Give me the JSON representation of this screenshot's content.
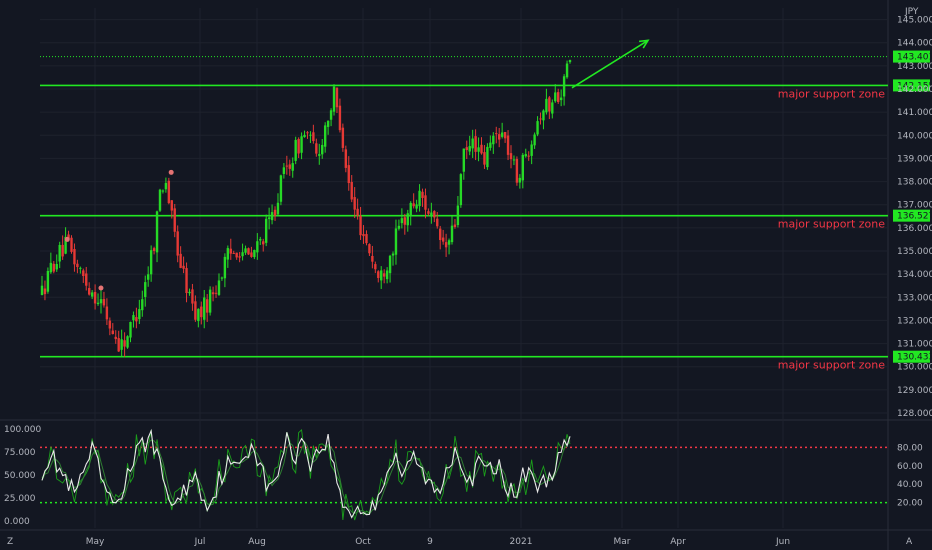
{
  "chart_data": [
    {
      "type": "candlestick",
      "currency": "JPY",
      "y_ticks": [
        "145.000",
        "144.000",
        "143.000",
        "142.000",
        "141.000",
        "140.000",
        "139.000",
        "138.000",
        "137.000",
        "136.000",
        "135.000",
        "134.000",
        "133.000",
        "132.000",
        "131.000",
        "130.000",
        "129.000",
        "128.000"
      ],
      "ylim": [
        128,
        145.5
      ],
      "x_ticks": [
        "May",
        "Jul",
        "Aug",
        "Oct",
        "9",
        "2021",
        "Mar",
        "Apr",
        "Jun"
      ],
      "current_price": "143.401",
      "horizontal_levels": [
        {
          "value": 142.155,
          "label": "142.155",
          "annotation": "major support zone"
        },
        {
          "value": 136.527,
          "label": "136.527",
          "annotation": "major support zone"
        },
        {
          "value": 130.433,
          "label": "130.433",
          "annotation": "major support zone"
        }
      ],
      "candle_count": 180,
      "price_path": [
        [
          0,
          133.2
        ],
        [
          4,
          134.5
        ],
        [
          9,
          135.3
        ],
        [
          13,
          134.2
        ],
        [
          17,
          133.4
        ],
        [
          21,
          132.8
        ],
        [
          25,
          131.5
        ],
        [
          28,
          130.9
        ],
        [
          31,
          131.5
        ],
        [
          36,
          133.2
        ],
        [
          40,
          135.5
        ],
        [
          42,
          137.6
        ],
        [
          44,
          138.2
        ],
        [
          46,
          136.5
        ],
        [
          49,
          134.6
        ],
        [
          53,
          132.8
        ],
        [
          55,
          132.2
        ],
        [
          58,
          132.6
        ],
        [
          62,
          133.5
        ],
        [
          66,
          134.7
        ],
        [
          70,
          135.2
        ],
        [
          74,
          134.6
        ],
        [
          78,
          135.5
        ],
        [
          82,
          136.5
        ],
        [
          86,
          138.3
        ],
        [
          90,
          139.3
        ],
        [
          94,
          140.2
        ],
        [
          98,
          139.0
        ],
        [
          101,
          140.5
        ],
        [
          104,
          141.7
        ],
        [
          107,
          140.0
        ],
        [
          109,
          138.0
        ],
        [
          111,
          136.8
        ],
        [
          114,
          135.9
        ],
        [
          117,
          134.9
        ],
        [
          120,
          133.7
        ],
        [
          124,
          134.9
        ],
        [
          128,
          136.2
        ],
        [
          132,
          137.0
        ],
        [
          135,
          137.4
        ],
        [
          138,
          136.7
        ],
        [
          141,
          135.6
        ],
        [
          144,
          135.1
        ],
        [
          147,
          136.1
        ],
        [
          150,
          139.0
        ],
        [
          154,
          139.8
        ],
        [
          157,
          138.7
        ],
        [
          160,
          139.7
        ],
        [
          163,
          140.3
        ],
        [
          166,
          139.4
        ],
        [
          169,
          138.2
        ],
        [
          172,
          139.0
        ],
        [
          175,
          140.3
        ],
        [
          178,
          141.2
        ],
        [
          181,
          141.3
        ],
        [
          184,
          141.9
        ],
        [
          186,
          142.3
        ],
        [
          188,
          143.4
        ]
      ]
    },
    {
      "type": "line",
      "indicator": "stochastic",
      "y_ticks": [
        "100.000",
        "75.000",
        "50.000",
        "25.000",
        "0.000"
      ],
      "right_ticks": [
        "80.00",
        "60.00",
        "40.00",
        "20.00"
      ],
      "ylim": [
        0,
        100
      ],
      "overbought": 80,
      "oversold": 20,
      "colors": {
        "k": "#e8e8e8",
        "d": "#2e7d32",
        "fast": "#1b9e1b"
      },
      "k_path": [
        [
          0,
          55
        ],
        [
          3,
          72
        ],
        [
          6,
          58
        ],
        [
          9,
          40
        ],
        [
          12,
          28
        ],
        [
          15,
          55
        ],
        [
          18,
          76
        ],
        [
          21,
          49
        ],
        [
          24,
          20
        ],
        [
          27,
          22
        ],
        [
          30,
          46
        ],
        [
          33,
          70
        ],
        [
          36,
          82
        ],
        [
          39,
          94
        ],
        [
          42,
          58
        ],
        [
          45,
          27
        ],
        [
          48,
          17
        ],
        [
          51,
          34
        ],
        [
          54,
          52
        ],
        [
          57,
          28
        ],
        [
          60,
          18
        ],
        [
          63,
          45
        ],
        [
          66,
          62
        ],
        [
          69,
          55
        ],
        [
          72,
          72
        ],
        [
          75,
          86
        ],
        [
          78,
          58
        ],
        [
          81,
          30
        ],
        [
          84,
          55
        ],
        [
          87,
          88
        ],
        [
          90,
          70
        ],
        [
          93,
          92
        ],
        [
          96,
          60
        ],
        [
          99,
          80
        ],
        [
          102,
          87
        ],
        [
          105,
          42
        ],
        [
          108,
          14
        ],
        [
          111,
          10
        ],
        [
          114,
          14
        ],
        [
          117,
          8
        ],
        [
          120,
          30
        ],
        [
          123,
          58
        ],
        [
          126,
          70
        ],
        [
          129,
          45
        ],
        [
          132,
          72
        ],
        [
          135,
          55
        ],
        [
          138,
          40
        ],
        [
          141,
          28
        ],
        [
          144,
          56
        ],
        [
          147,
          80
        ],
        [
          150,
          60
        ],
        [
          153,
          42
        ],
        [
          156,
          66
        ],
        [
          159,
          52
        ],
        [
          162,
          62
        ],
        [
          165,
          44
        ],
        [
          168,
          24
        ],
        [
          171,
          48
        ],
        [
          174,
          58
        ],
        [
          177,
          34
        ],
        [
          180,
          46
        ],
        [
          183,
          62
        ],
        [
          186,
          78
        ],
        [
          188,
          86
        ]
      ]
    }
  ],
  "x_axis_tags": {
    "left": "Z",
    "right": "A"
  }
}
